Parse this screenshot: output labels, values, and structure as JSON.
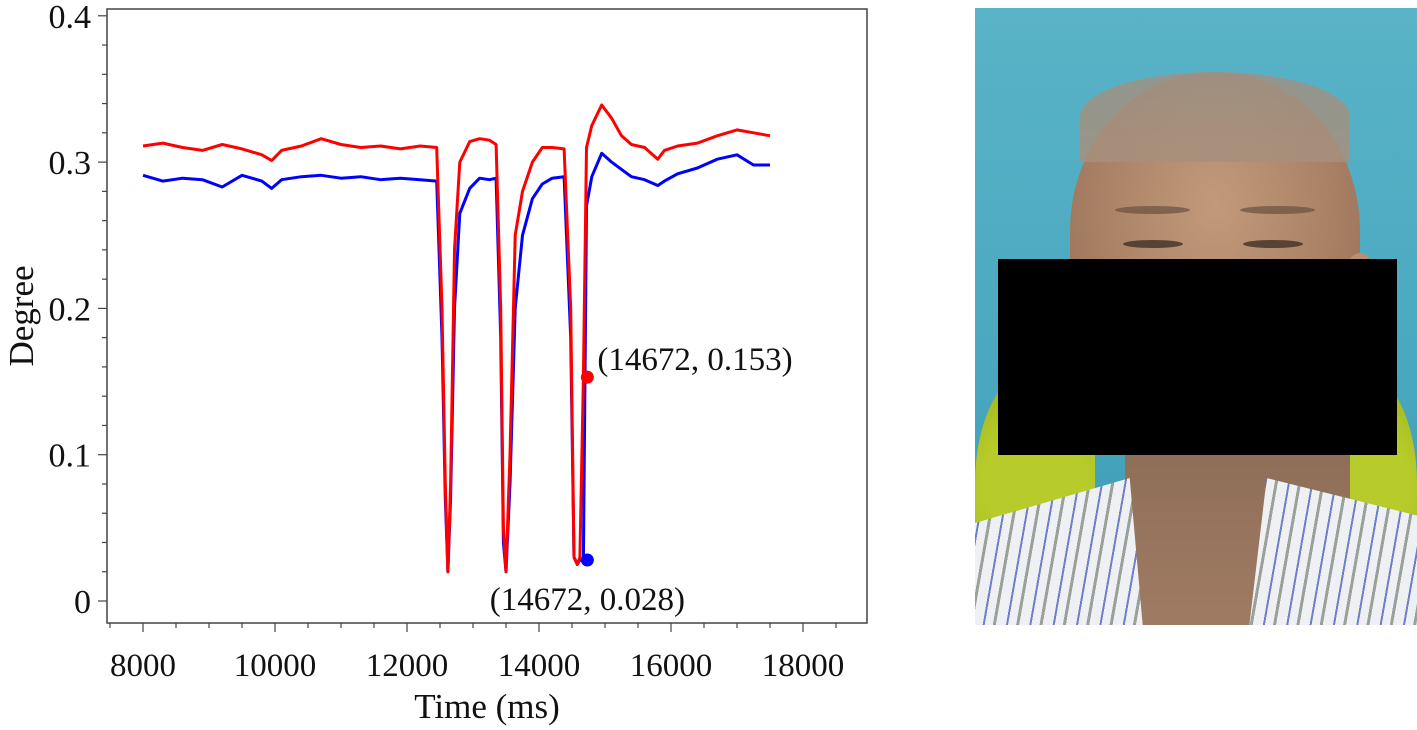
{
  "chart_data": {
    "type": "line",
    "title": "",
    "xlabel": "Time (ms)",
    "ylabel": "Degree",
    "xlim": [
      7500,
      19300
    ],
    "ylim": [
      -0.018,
      0.405
    ],
    "xticks": [
      8000,
      10000,
      12000,
      14000,
      16000,
      18000
    ],
    "xtick_labels": [
      "8000",
      "10000",
      "12000",
      "14000",
      "16000",
      "18000"
    ],
    "x_minor_step": 500,
    "yticks": [
      0,
      0.1,
      0.2,
      0.3,
      0.4
    ],
    "ytick_labels": [
      "0",
      "0.1",
      "0.2",
      "0.3",
      "0.4"
    ],
    "y_minor_step": 0.02,
    "grid": false,
    "legend": null,
    "series": [
      {
        "name": "red",
        "color": "#ff0000",
        "x": [
          8000,
          8300,
          8600,
          8900,
          9200,
          9500,
          9800,
          9950,
          10100,
          10400,
          10700,
          11000,
          11300,
          11600,
          11900,
          12200,
          12450,
          12530,
          12580,
          12620,
          12660,
          12720,
          12800,
          12950,
          13100,
          13250,
          13350,
          13420,
          13460,
          13500,
          13560,
          13640,
          13750,
          13900,
          14050,
          14200,
          14380,
          14480,
          14530,
          14580,
          14620,
          14672,
          14720,
          14800,
          14950,
          15100,
          15250,
          15400,
          15600,
          15800,
          15900,
          16100,
          16400,
          16700,
          17000,
          17250,
          17500
        ],
        "y": [
          0.311,
          0.313,
          0.31,
          0.308,
          0.312,
          0.309,
          0.305,
          0.301,
          0.308,
          0.311,
          0.316,
          0.312,
          0.31,
          0.311,
          0.309,
          0.311,
          0.31,
          0.2,
          0.08,
          0.02,
          0.08,
          0.24,
          0.3,
          0.314,
          0.316,
          0.315,
          0.312,
          0.2,
          0.05,
          0.02,
          0.1,
          0.25,
          0.28,
          0.3,
          0.31,
          0.31,
          0.309,
          0.2,
          0.03,
          0.025,
          0.03,
          0.153,
          0.31,
          0.325,
          0.339,
          0.33,
          0.318,
          0.312,
          0.31,
          0.302,
          0.308,
          0.311,
          0.313,
          0.318,
          0.322,
          0.32,
          0.318
        ]
      },
      {
        "name": "blue",
        "color": "#0000ff",
        "x": [
          8000,
          8300,
          8600,
          8900,
          9200,
          9500,
          9800,
          9950,
          10100,
          10400,
          10700,
          11000,
          11300,
          11600,
          11900,
          12200,
          12450,
          12530,
          12580,
          12620,
          12660,
          12720,
          12800,
          12950,
          13100,
          13250,
          13350,
          13420,
          13460,
          13500,
          13560,
          13640,
          13750,
          13900,
          14050,
          14200,
          14380,
          14480,
          14530,
          14580,
          14620,
          14672,
          14720,
          14800,
          14950,
          15100,
          15250,
          15400,
          15600,
          15800,
          15900,
          16100,
          16400,
          16700,
          17000,
          17250,
          17500
        ],
        "y": [
          0.291,
          0.287,
          0.289,
          0.288,
          0.283,
          0.291,
          0.287,
          0.282,
          0.288,
          0.29,
          0.291,
          0.289,
          0.29,
          0.288,
          0.289,
          0.288,
          0.287,
          0.18,
          0.07,
          0.02,
          0.07,
          0.2,
          0.265,
          0.282,
          0.289,
          0.288,
          0.289,
          0.18,
          0.04,
          0.02,
          0.08,
          0.2,
          0.25,
          0.275,
          0.285,
          0.289,
          0.29,
          0.18,
          0.03,
          0.025,
          0.028,
          0.028,
          0.27,
          0.29,
          0.306,
          0.3,
          0.295,
          0.29,
          0.288,
          0.284,
          0.287,
          0.292,
          0.296,
          0.302,
          0.305,
          0.298,
          0.298
        ]
      }
    ],
    "annotations": [
      {
        "text": "(14672, 0.153)",
        "x": 14672,
        "y": 0.153,
        "marker_color": "#ff0000",
        "label_position": "right"
      },
      {
        "text": "(14672, 0.028)",
        "x": 14672,
        "y": 0.028,
        "marker_color": "#0000ff",
        "label_position": "below"
      }
    ]
  },
  "photo": {
    "description": "frontal face photograph of a patient with eyes nearly closed, lower face covered by black privacy rectangle",
    "background_color": "#55afc4",
    "censor_color": "#000000"
  }
}
